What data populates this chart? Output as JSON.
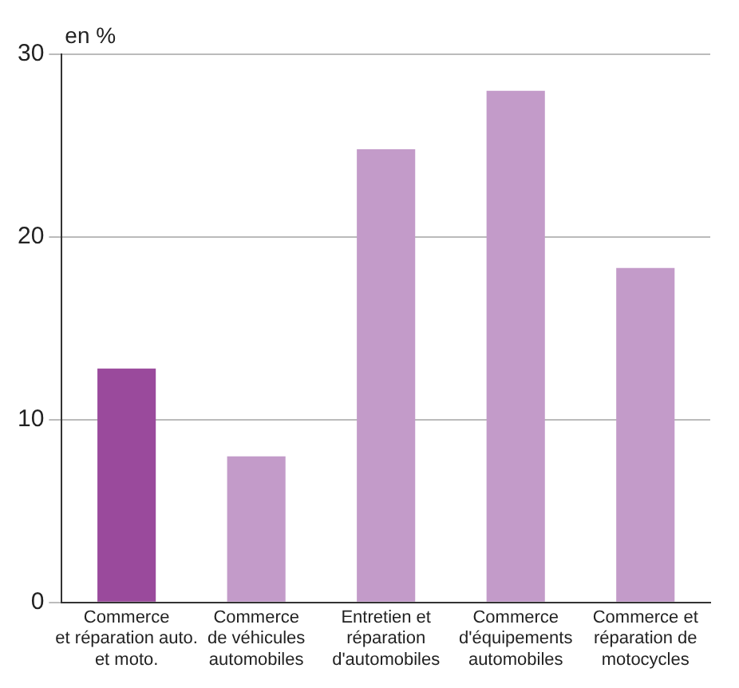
{
  "chart_data": {
    "type": "bar",
    "ylabel": "en %",
    "categories": [
      "Commerce\net réparation auto.\net moto.",
      "Commerce\nde véhicules\nautomobiles",
      "Entretien et\nréparation\nd'automobiles",
      "Commerce\nd'équipements\nautomobiles",
      "Commerce et\nréparation de\nmotocycles"
    ],
    "values": [
      12.8,
      8.0,
      24.8,
      28.0,
      18.3
    ],
    "colors": [
      "#9a4a9c",
      "#c39bc9",
      "#c39bc9",
      "#c39bc9",
      "#c39bc9"
    ],
    "ylim": [
      0,
      30
    ],
    "yticks": [
      0,
      10,
      20,
      30
    ],
    "grid": "y"
  }
}
